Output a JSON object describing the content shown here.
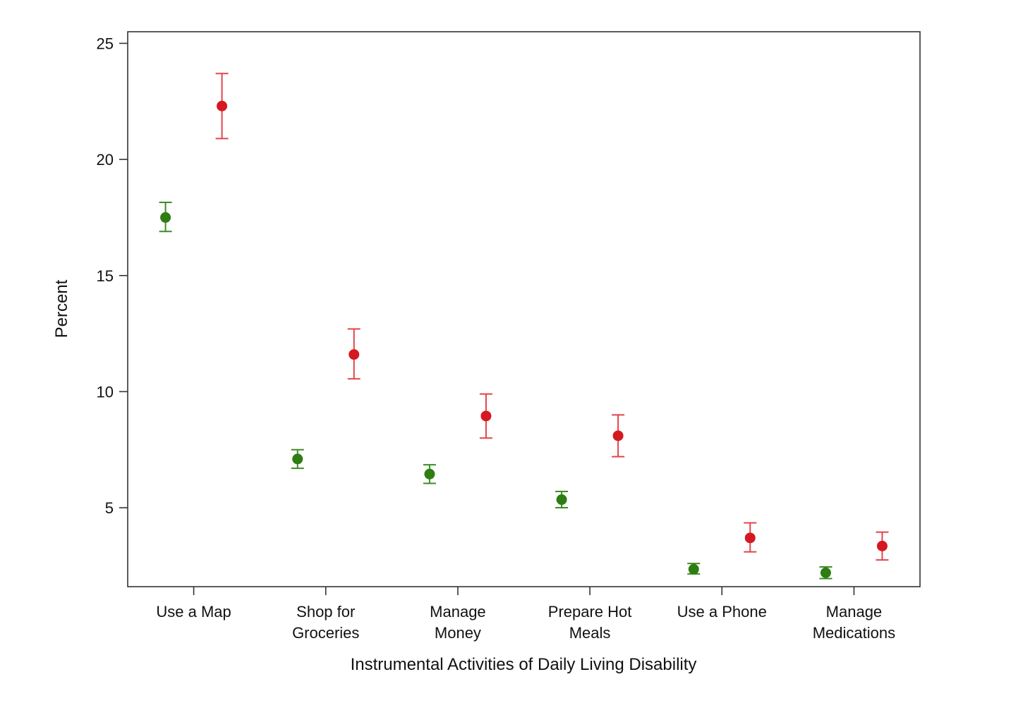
{
  "chart_data": {
    "type": "scatter",
    "title": "",
    "xlabel": "Instrumental Activities of Daily Living Disability",
    "ylabel": "Percent",
    "ylim": [
      1.6,
      25.5
    ],
    "yticks": [
      5,
      10,
      15,
      20,
      25
    ],
    "grid": false,
    "categories": [
      [
        "Use a Map"
      ],
      [
        "Shop for",
        "Groceries"
      ],
      [
        "Manage",
        "Money"
      ],
      [
        "Prepare Hot",
        "Meals"
      ],
      [
        "Use a Phone"
      ],
      [
        "Manage",
        "Medications"
      ]
    ],
    "series": [
      {
        "name": "green series",
        "color": "#2e7d12",
        "errorbar_color": "#3d8c22",
        "values": [
          17.5,
          7.1,
          6.45,
          5.35,
          2.35,
          2.2
        ],
        "lower": [
          16.9,
          6.7,
          6.05,
          5.0,
          2.15,
          1.95
        ],
        "upper": [
          18.15,
          7.5,
          6.85,
          5.7,
          2.6,
          2.45
        ]
      },
      {
        "name": "red series",
        "color": "#d41920",
        "errorbar_color": "#e0454c",
        "values": [
          22.3,
          11.6,
          8.95,
          8.1,
          3.7,
          3.35
        ],
        "lower": [
          20.9,
          10.55,
          8.0,
          7.2,
          3.1,
          2.75
        ],
        "upper": [
          23.7,
          12.7,
          9.9,
          9.0,
          4.35,
          3.95
        ]
      }
    ]
  }
}
